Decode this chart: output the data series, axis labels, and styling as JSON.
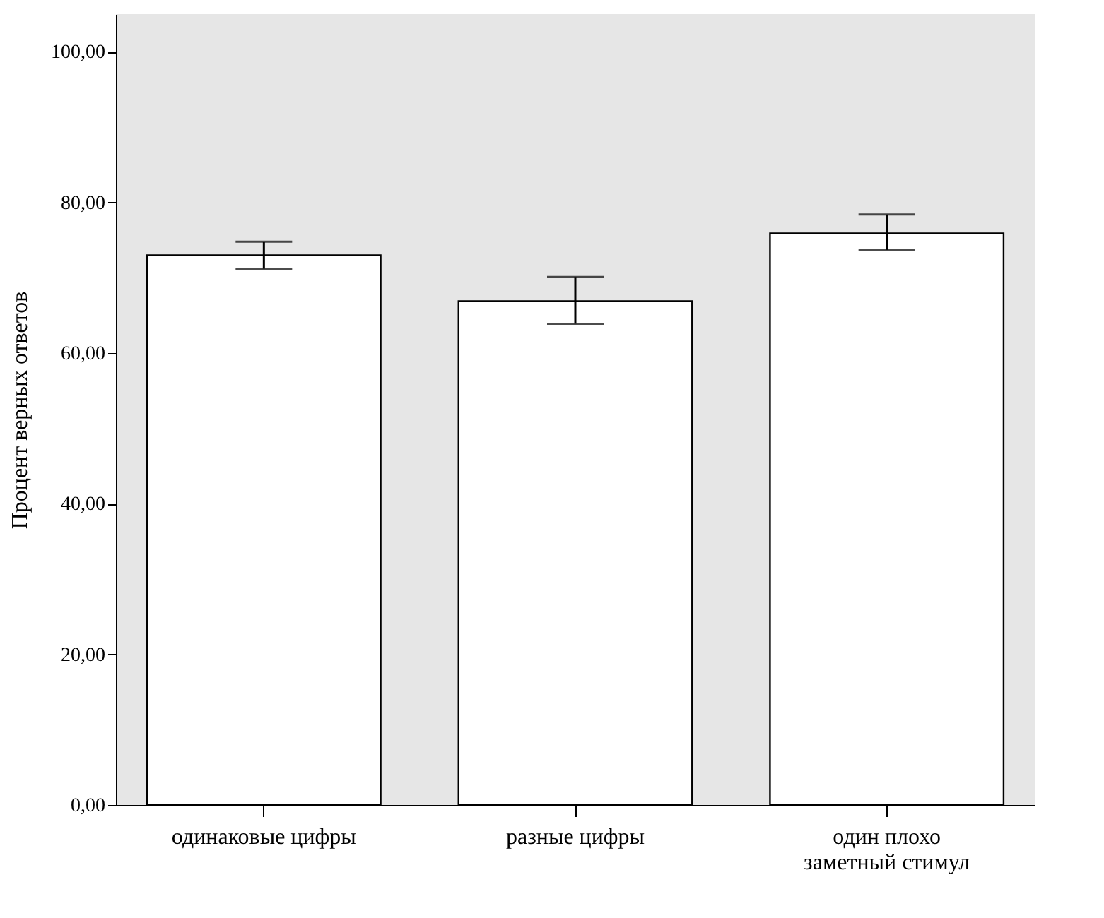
{
  "chart_data": {
    "type": "bar",
    "ylabel": "Процент верных ответов",
    "categories": [
      "одинаковые цифры",
      "разные цифры",
      "один плохо заметный стимул"
    ],
    "values": [
      73.0,
      66.9,
      75.9
    ],
    "errors": [
      [
        71.2,
        74.8
      ],
      [
        63.9,
        70.1
      ],
      [
        73.7,
        78.4
      ]
    ],
    "color": "#ffffff",
    "ylim": [
      0,
      105
    ],
    "yticks": [
      {
        "value": 0,
        "label": "0,00"
      },
      {
        "value": 20,
        "label": "20,00"
      },
      {
        "value": 40,
        "label": "40,00"
      },
      {
        "value": 60,
        "label": "60,00"
      },
      {
        "value": 80,
        "label": "80,00"
      },
      {
        "value": 100,
        "label": "100,00"
      }
    ],
    "grid": false
  }
}
